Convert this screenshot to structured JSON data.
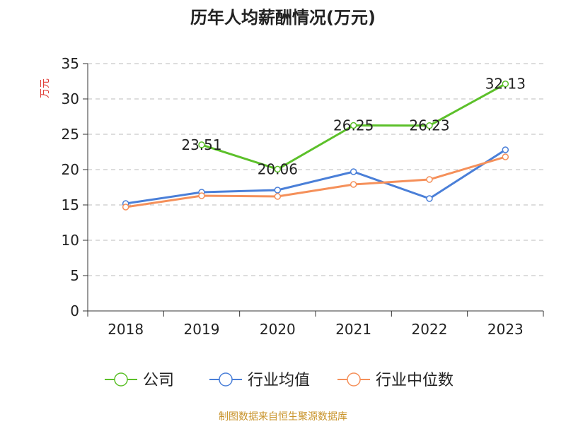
{
  "chart_data": {
    "type": "line",
    "title": "历年人均薪酬情况(万元)",
    "ylabel": "万元",
    "xlabel": "",
    "categories": [
      "2018",
      "2019",
      "2020",
      "2021",
      "2022",
      "2023"
    ],
    "ylim": [
      0,
      35
    ],
    "yticks": [
      "0",
      "5",
      "10",
      "15",
      "20",
      "25",
      "30",
      "35"
    ],
    "grid": true,
    "legend_position": "bottom",
    "series": [
      {
        "name": "公司",
        "color": "#5cc02a",
        "values": [
          null,
          23.51,
          20.06,
          26.25,
          26.23,
          32.13
        ],
        "labels": [
          "",
          "23.51",
          "20.06",
          "26.25",
          "26.23",
          "32.13"
        ]
      },
      {
        "name": "行业均值",
        "color": "#4a7fd8",
        "values": [
          15.2,
          16.8,
          17.1,
          19.7,
          15.9,
          22.8
        ],
        "labels": [
          "",
          "",
          "",
          "",
          "",
          ""
        ]
      },
      {
        "name": "行业中位数",
        "color": "#f5905a",
        "values": [
          14.7,
          16.3,
          16.2,
          17.9,
          18.6,
          21.8
        ],
        "labels": [
          "",
          "",
          "",
          "",
          "",
          ""
        ]
      }
    ]
  },
  "colors": {
    "ylabel": "#e0403a",
    "source": "#c8932a",
    "grid": "#bbbbbb",
    "axis": "#333333"
  },
  "source": "制图数据来自恒生聚源数据库"
}
